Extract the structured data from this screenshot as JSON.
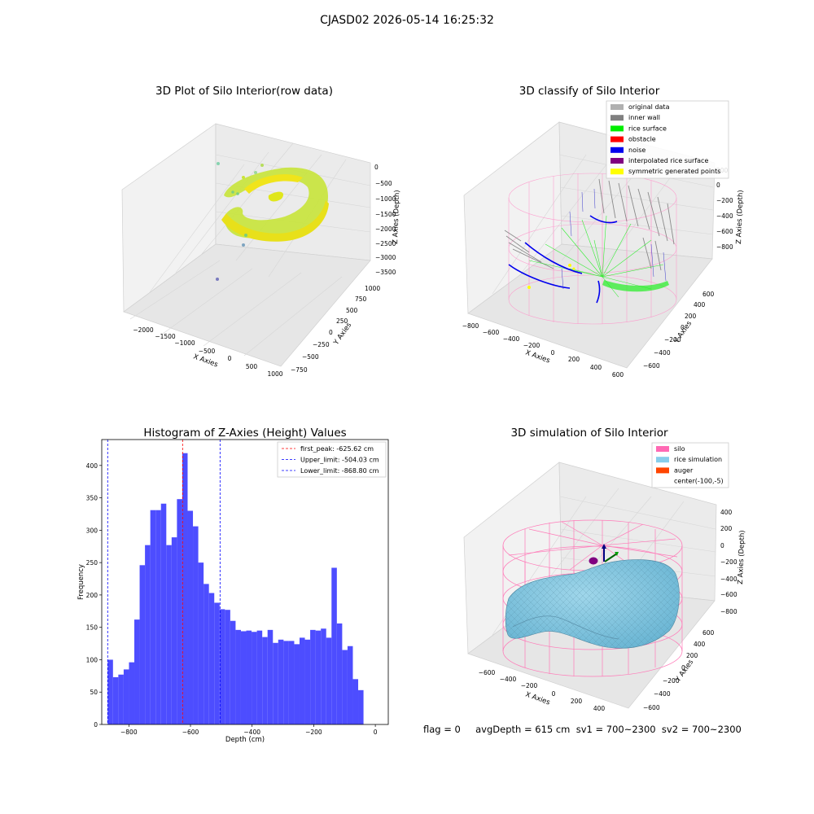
{
  "suptitle": "CJASD02 2026-05-14 16:25:32",
  "footer": "flag = 0     avgDepth = 615 cm  sv1 = 700~2300  sv2 = 700~2300",
  "chart_data": [
    {
      "type": "scatter3d",
      "title": "3D Plot of Silo Interior(row data)",
      "xlabel": "X Axies",
      "ylabel": "Y Axies",
      "zlabel": "Z Axies (Depth)",
      "xticks": [
        "−2000",
        "−1500",
        "−1000",
        "−500",
        "0",
        "500",
        "1000"
      ],
      "yticks": [
        "−750",
        "−500",
        "−250",
        "0",
        "250",
        "500",
        "750",
        "1000"
      ],
      "zticks": [
        "0",
        "−500",
        "−1000",
        "−1500",
        "−2000",
        "−2500",
        "−3000",
        "−3500"
      ],
      "colors": [
        "#d4e81a",
        "#a6dd3c",
        "#79d251",
        "#f0e41b"
      ]
    },
    {
      "type": "scatter3d",
      "title": "3D classify of Silo Interior",
      "xticks": [
        "−800",
        "−600",
        "−400",
        "−200",
        "0",
        "200",
        "400",
        "600"
      ],
      "yticks": [
        "−600",
        "−400",
        "−200",
        "0",
        "200",
        "400",
        "600"
      ],
      "zticks": [
        "200",
        "0",
        "−200",
        "−400",
        "−600",
        "−800"
      ],
      "xlabel": "X Axies",
      "ylabel": "Y Axies",
      "zlabel": "Z Axies (Depth)",
      "legend_loc": "upper right",
      "legend": [
        {
          "label": "original data",
          "color": "#b0b0b0"
        },
        {
          "label": "inner wall",
          "color": "#808080"
        },
        {
          "label": "rice surface",
          "color": "#00ee00"
        },
        {
          "label": "obstacle",
          "color": "#ff0000"
        },
        {
          "label": "noise",
          "color": "#0000ee"
        },
        {
          "label": "interpolated rice surface",
          "color": "#800080"
        },
        {
          "label": "symmetric generated points",
          "color": "#ffff00"
        }
      ]
    },
    {
      "type": "bar",
      "title": "Histogram of Z-Axies (Height) Values",
      "xlabel": "Depth (cm)",
      "ylabel": "Frequency",
      "xlim": [
        -888,
        42
      ],
      "ylim": [
        0,
        440
      ],
      "xticks": [
        -800,
        -600,
        -400,
        -200,
        0
      ],
      "xtick_labels": [
        "−800",
        "−600",
        "−400",
        "−200",
        "0"
      ],
      "yticks": [
        0,
        50,
        100,
        150,
        200,
        250,
        300,
        350,
        400
      ],
      "bar_color": "#4d4dff",
      "bin_start": -868.8,
      "bin_width": 17.3,
      "values": [
        100,
        73,
        77,
        85,
        96,
        162,
        246,
        277,
        331,
        331,
        341,
        277,
        289,
        348,
        419,
        330,
        306,
        250,
        217,
        203,
        188,
        178,
        177,
        160,
        146,
        144,
        145,
        143,
        145,
        135,
        146,
        126,
        131,
        129,
        129,
        124,
        134,
        131,
        146,
        145,
        148,
        134,
        242,
        156,
        115,
        121,
        70,
        53
      ],
      "vlines": [
        {
          "value": -625.62,
          "label": "first_peak: -625.62 cm",
          "color": "#ff0000"
        },
        {
          "value": -504.03,
          "label": "Upper_limit: -504.03 cm",
          "color": "#0000ff"
        },
        {
          "value": -868.8,
          "label": "Lower_limit: -868.80 cm",
          "color": "#0000ff"
        }
      ],
      "legend_loc": "upper right"
    },
    {
      "type": "surface3d",
      "title": "3D simulation of Silo Interior",
      "xticks": [
        "−600",
        "−400",
        "−200",
        "0",
        "200",
        "400"
      ],
      "yticks": [
        "−600",
        "−400",
        "−200",
        "0",
        "200",
        "400",
        "600"
      ],
      "zticks": [
        "400",
        "200",
        "0",
        "−200",
        "−400",
        "−600",
        "−800"
      ],
      "xlabel": "X Axies",
      "ylabel": "Y Axies",
      "zlabel": "Z Axies (Depth)",
      "legend_loc": "upper right",
      "legend": [
        {
          "label": "silo",
          "color": "#ff69b4"
        },
        {
          "label": "rice simulation",
          "color": "#87ceeb"
        },
        {
          "label": "auger",
          "color": "#ff4500"
        },
        {
          "label": "center(-100,-5)",
          "color": null
        }
      ]
    }
  ]
}
